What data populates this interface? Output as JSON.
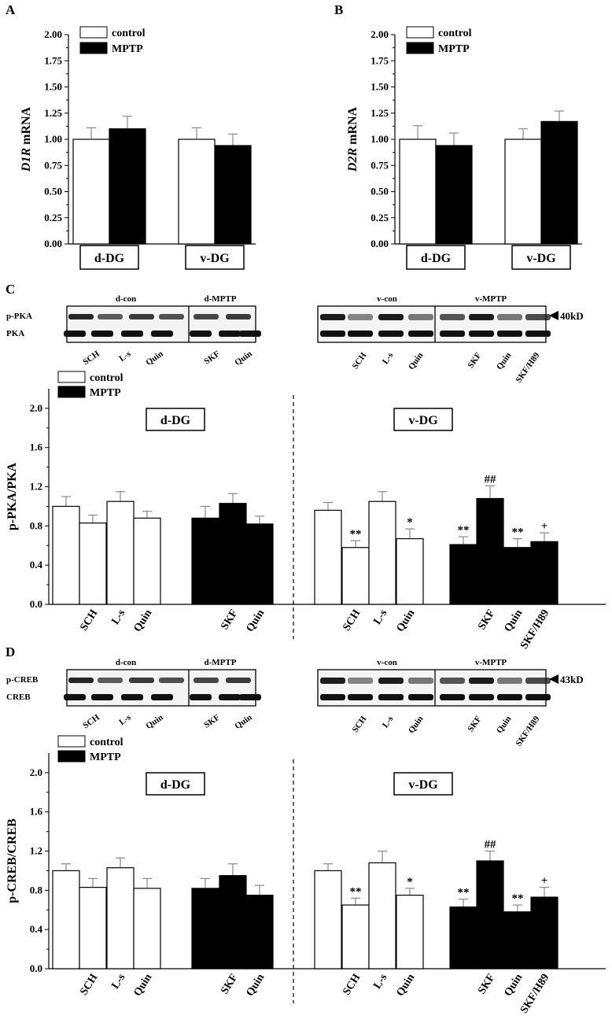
{
  "panels": {
    "A": "A",
    "B": "B",
    "C": "C",
    "D": "D"
  },
  "legend": {
    "control": "control",
    "mptp": "MPTP"
  },
  "colors": {
    "control": "#ffffff",
    "mptp": "#000000",
    "line": "#000000",
    "error": "#888888"
  },
  "blots": {
    "C": {
      "left_groups": [
        "d-con",
        "d-MPTP"
      ],
      "right_groups": [
        "v-con",
        "v-MPTP"
      ],
      "rows": [
        "p-PKA",
        "PKA"
      ],
      "left_lanes": [
        "SCH",
        "L-s",
        "Quin",
        "SKF",
        "Quin"
      ],
      "right_lanes": [
        "SCH",
        "L-s",
        "Quin",
        "SKF",
        "Quin",
        "SKF/H89"
      ],
      "marker": "40kD"
    },
    "D": {
      "left_groups": [
        "d-con",
        "d-MPTP"
      ],
      "right_groups": [
        "v-con",
        "v-MPTP"
      ],
      "rows": [
        "p-CREB",
        "CREB"
      ],
      "left_lanes": [
        "SCH",
        "L-s",
        "Quin",
        "SKF",
        "Quin"
      ],
      "right_lanes": [
        "SCH",
        "L-s",
        "Quin",
        "SKF",
        "Quin",
        "SKF/H89"
      ],
      "marker": "43kD"
    }
  },
  "chart_data": [
    {
      "id": "A",
      "type": "bar",
      "ylabel_italic": "D1R",
      "ylabel_rest": " mRNA",
      "ylim": [
        0,
        2
      ],
      "yticks": [
        "0.00",
        "0.25",
        "0.50",
        "0.75",
        "1.00",
        "1.25",
        "1.50",
        "1.75",
        "2.00"
      ],
      "groups": [
        "d-DG",
        "v-DG"
      ],
      "series": [
        {
          "name": "control",
          "values": [
            1.0,
            1.0
          ],
          "errors": [
            0.11,
            0.11
          ]
        },
        {
          "name": "MPTP",
          "values": [
            1.1,
            0.94
          ],
          "errors": [
            0.12,
            0.11
          ]
        }
      ]
    },
    {
      "id": "B",
      "type": "bar",
      "ylabel_italic": "D2R",
      "ylabel_rest": " mRNA",
      "ylim": [
        0,
        2
      ],
      "yticks": [
        "0.00",
        "0.25",
        "0.50",
        "0.75",
        "1.00",
        "1.25",
        "1.50",
        "1.75",
        "2.00"
      ],
      "groups": [
        "d-DG",
        "v-DG"
      ],
      "series": [
        {
          "name": "control",
          "values": [
            1.0,
            1.0
          ],
          "errors": [
            0.13,
            0.1
          ]
        },
        {
          "name": "MPTP",
          "values": [
            0.94,
            1.17
          ],
          "errors": [
            0.12,
            0.1
          ]
        }
      ]
    },
    {
      "id": "C",
      "type": "bar",
      "ylabel": "p-PKA/PKA",
      "ylim": [
        0,
        2.2
      ],
      "yticks": [
        "0.0",
        "0.4",
        "0.8",
        "1.2",
        "1.6",
        "2.0"
      ],
      "regions": [
        "d-DG",
        "v-DG"
      ],
      "categories": [
        "",
        "SCH",
        "L-s",
        "Quin",
        "",
        "SKF",
        "Quin",
        "",
        "SCH",
        "L-s",
        "Quin",
        "",
        "SKF",
        "Quin",
        "SKF/H89"
      ],
      "values": [
        1.0,
        0.83,
        1.05,
        0.88,
        0.88,
        1.03,
        0.82,
        0.96,
        0.58,
        1.05,
        0.67,
        0.61,
        1.08,
        0.58,
        0.64
      ],
      "errors": [
        0.1,
        0.08,
        0.1,
        0.07,
        0.12,
        0.1,
        0.08,
        0.08,
        0.07,
        0.1,
        0.1,
        0.08,
        0.13,
        0.09,
        0.09
      ],
      "group": [
        "control",
        "control",
        "control",
        "control",
        "mptp",
        "mptp",
        "mptp",
        "control",
        "control",
        "control",
        "control",
        "mptp",
        "mptp",
        "mptp",
        "mptp"
      ],
      "annotations": [
        "",
        "",
        "",
        "",
        "",
        "",
        "",
        "",
        "**",
        "",
        "*",
        "**",
        "##",
        "**",
        "+"
      ]
    },
    {
      "id": "D",
      "type": "bar",
      "ylabel": "p-CREB/CREB",
      "ylim": [
        0,
        2.2
      ],
      "yticks": [
        "0.0",
        "0.4",
        "0.8",
        "1.2",
        "1.6",
        "2.0"
      ],
      "regions": [
        "d-DG",
        "v-DG"
      ],
      "categories": [
        "",
        "SCH",
        "L-s",
        "Quin",
        "",
        "SKF",
        "Quin",
        "",
        "SCH",
        "L-s",
        "Quin",
        "",
        "SKF",
        "Quin",
        "SKF/H89"
      ],
      "values": [
        1.0,
        0.83,
        1.03,
        0.82,
        0.82,
        0.95,
        0.75,
        1.0,
        0.65,
        1.08,
        0.75,
        0.63,
        1.1,
        0.58,
        0.73
      ],
      "errors": [
        0.07,
        0.09,
        0.1,
        0.1,
        0.1,
        0.12,
        0.1,
        0.07,
        0.07,
        0.12,
        0.07,
        0.08,
        0.1,
        0.07,
        0.1
      ],
      "group": [
        "control",
        "control",
        "control",
        "control",
        "mptp",
        "mptp",
        "mptp",
        "control",
        "control",
        "control",
        "control",
        "mptp",
        "mptp",
        "mptp",
        "mptp"
      ],
      "annotations": [
        "",
        "",
        "",
        "",
        "",
        "",
        "",
        "",
        "**",
        "",
        "*",
        "**",
        "##",
        "**",
        "+"
      ]
    }
  ]
}
